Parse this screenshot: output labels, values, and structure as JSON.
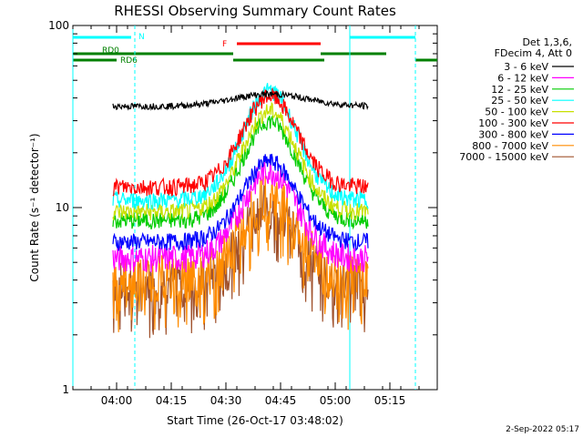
{
  "chart_data": {
    "type": "line",
    "title": "RHESSI Observing Summary Count Rates",
    "xlabel": "Start Time (26-Oct-17 03:48:02)",
    "ylabel": "Count Rate (s⁻¹ detector⁻¹)",
    "y_scale": "log",
    "ylim": [
      1,
      100
    ],
    "xlim": [
      "03:48",
      "05:28"
    ],
    "x_ticks": [
      "04:00",
      "04:15",
      "04:30",
      "04:45",
      "05:00",
      "05:15"
    ],
    "y_ticks": [
      "1",
      "10",
      "100"
    ],
    "legend": {
      "position": "top-right",
      "header": [
        "Det 1,3,6,",
        "FDecim 4, Att 0"
      ]
    },
    "series": [
      {
        "name": "3 - 6 keV",
        "color": "#000000",
        "base": 36,
        "peak": 42
      },
      {
        "name": "6 - 12 keV",
        "color": "#ff00ff",
        "base": 5.3,
        "peak": 16
      },
      {
        "name": "12 - 25 keV",
        "color": "#00cc00",
        "base": 8.5,
        "peak": 30
      },
      {
        "name": "25 - 50 keV",
        "color": "#00ffff",
        "base": 11,
        "peak": 44
      },
      {
        "name": "50 - 100 keV",
        "color": "#c8e000",
        "base": 9.5,
        "peak": 34
      },
      {
        "name": "100 - 300 keV",
        "color": "#ff0000",
        "base": 13,
        "peak": 41
      },
      {
        "name": "300 - 800 keV",
        "color": "#0000ff",
        "base": 6.5,
        "peak": 18
      },
      {
        "name": "800 - 7000 keV",
        "color": "#ff8c00",
        "base": 4.3,
        "peak": 12
      },
      {
        "name": "7000 - 15000 keV",
        "color": "#a0522d",
        "base": 4.0,
        "peak": 11
      }
    ],
    "flag_bars": [
      {
        "label": "N",
        "color": "#00ffff",
        "segments": [
          [
            "03:48",
            "04:04"
          ],
          [
            "05:04",
            "05:22"
          ]
        ]
      },
      {
        "label": "F",
        "color": "#ff0000",
        "segments": [
          [
            "04:33",
            "04:56"
          ]
        ]
      },
      {
        "label": "RD0",
        "color": "#008000",
        "segments": [
          [
            "03:48",
            "04:32"
          ],
          [
            "04:56",
            "05:14"
          ]
        ]
      },
      {
        "label": "RD6",
        "color": "#008000",
        "segments": [
          [
            "03:48",
            "04:00"
          ],
          [
            "04:32",
            "04:57"
          ],
          [
            "05:22",
            "05:28"
          ]
        ]
      }
    ],
    "vertical_lines": [
      {
        "time": "03:48",
        "color": "#00ffff",
        "style": "solid"
      },
      {
        "time": "04:05",
        "color": "#00ffff",
        "style": "dashed"
      },
      {
        "time": "05:04",
        "color": "#00ffff",
        "style": "solid"
      },
      {
        "time": "05:22",
        "color": "#00ffff",
        "style": "dashed"
      }
    ],
    "data_start": "03:59",
    "data_end": "05:09",
    "footer_date": "2-Sep-2022 05:17"
  }
}
